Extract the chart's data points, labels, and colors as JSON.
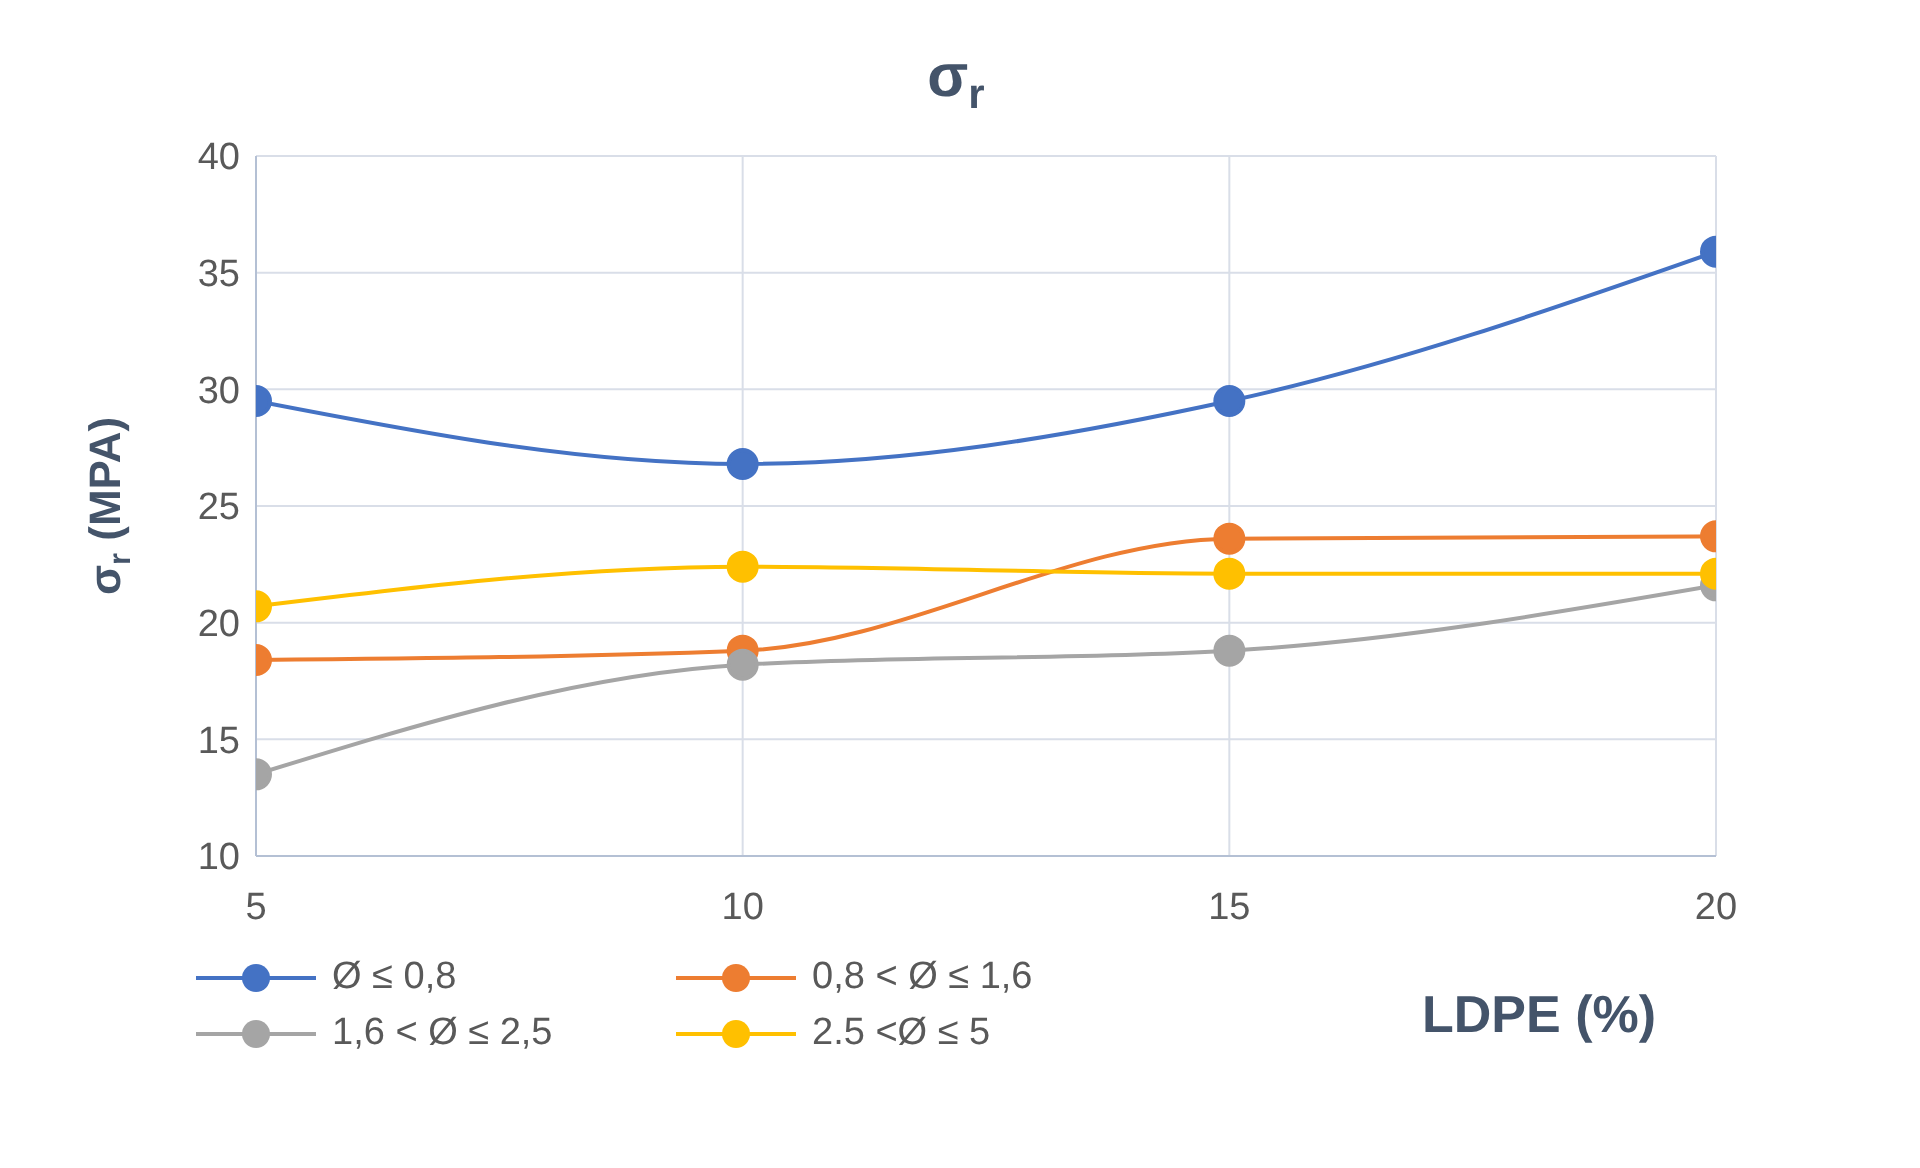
{
  "chart_data": {
    "type": "line",
    "title": "σ$_{r}$",
    "ylabel": "σ$_{r}$ (MPA)",
    "xlabel": "LDPE (%)",
    "x": [
      5,
      10,
      15,
      20
    ],
    "xlim": [
      5,
      20
    ],
    "xticks": [
      5,
      10,
      15,
      20
    ],
    "ylim": [
      10,
      40
    ],
    "yticks": [
      10,
      15,
      20,
      25,
      30,
      35,
      40
    ],
    "grid": true,
    "legend": "bottom left",
    "marker": "circle",
    "line_style": "solid",
    "series": [
      {
        "name": "Ø ≤  0,8",
        "color": "#4472c4",
        "values": [
          29.5,
          26.8,
          29.5,
          35.9
        ]
      },
      {
        "name": "0,8 < Ø ≤  1,6",
        "color": "#ed7d31",
        "values": [
          18.4,
          18.8,
          23.6,
          23.7
        ]
      },
      {
        "name": "1,6 < Ø ≤  2,5",
        "color": "#a5a5a5",
        "values": [
          13.5,
          18.2,
          18.8,
          21.6
        ]
      },
      {
        "name": "2.5 <Ø ≤ 5",
        "color": "#ffc000",
        "values": [
          20.7,
          22.4,
          22.1,
          22.1
        ]
      }
    ]
  }
}
